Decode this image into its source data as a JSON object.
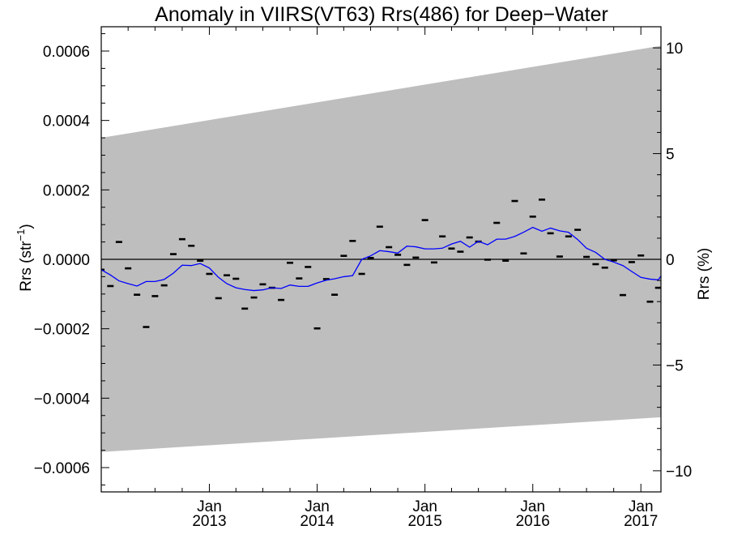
{
  "chart_data": {
    "type": "line",
    "title": "Anomaly in VIIRS(VT63) Rrs(486) for Deep−Water",
    "ylabel_left": {
      "main": "Rrs (str",
      "sup": "−1",
      "close": ")"
    },
    "ylabel_right": "Rrs (%)",
    "ylim_left": [
      -0.00067,
      0.00067
    ],
    "ylim_right": [
      -11.0,
      11.0
    ],
    "y_ticks_left": [
      {
        "value": -0.0006,
        "label": "−0.0006"
      },
      {
        "value": -0.0004,
        "label": "−0.0004"
      },
      {
        "value": -0.0002,
        "label": "−0.0002"
      },
      {
        "value": 0.0,
        "label": "0.0000"
      },
      {
        "value": 0.0002,
        "label": "0.0002"
      },
      {
        "value": 0.0004,
        "label": "0.0004"
      },
      {
        "value": 0.0006,
        "label": "0.0006"
      }
    ],
    "y_ticks_right": [
      {
        "value": -10,
        "label": "−10"
      },
      {
        "value": -5,
        "label": "−5"
      },
      {
        "value": 0,
        "label": "0"
      },
      {
        "value": 5,
        "label": "5"
      },
      {
        "value": 10,
        "label": "10"
      }
    ],
    "x_range": [
      "2012-01-01",
      "2017-03-10"
    ],
    "x_ticks": [
      {
        "date": "2013-01-01",
        "month": "Jan",
        "year": "2013"
      },
      {
        "date": "2014-01-01",
        "month": "Jan",
        "year": "2014"
      },
      {
        "date": "2015-01-01",
        "month": "Jan",
        "year": "2015"
      },
      {
        "date": "2016-01-01",
        "month": "Jan",
        "year": "2016"
      },
      {
        "date": "2017-01-01",
        "month": "Jan",
        "year": "2017"
      }
    ],
    "uncertainty_band": {
      "color": "#bebebe",
      "x": [
        "2012-01-01",
        "2017-03-10"
      ],
      "upper": [
        0.00035,
        0.000615
      ],
      "lower": [
        -0.000555,
        -0.000455
      ]
    },
    "zero_line": 0.0,
    "series": [
      {
        "kind": "monthly_marks",
        "color": "#000000",
        "points": [
          {
            "x": "2012-01-01",
            "y": -3e-05
          },
          {
            "x": "2012-02-01",
            "y": -7.7e-05
          },
          {
            "x": "2012-03-01",
            "y": 5e-05
          },
          {
            "x": "2012-04-01",
            "y": -2.6e-05
          },
          {
            "x": "2012-05-01",
            "y": -0.000102
          },
          {
            "x": "2012-06-01",
            "y": -0.000195
          },
          {
            "x": "2012-07-01",
            "y": -0.000106
          },
          {
            "x": "2012-08-01",
            "y": -7.5e-05
          },
          {
            "x": "2012-09-01",
            "y": 1.5e-05
          },
          {
            "x": "2012-10-01",
            "y": 5.8e-05
          },
          {
            "x": "2012-11-01",
            "y": 3.9e-05
          },
          {
            "x": "2012-12-01",
            "y": -4e-06
          },
          {
            "x": "2013-01-01",
            "y": -4.2e-05
          },
          {
            "x": "2013-02-01",
            "y": -0.000112
          },
          {
            "x": "2013-03-01",
            "y": -4.6e-05
          },
          {
            "x": "2013-04-01",
            "y": -5.6e-05
          },
          {
            "x": "2013-05-01",
            "y": -0.000142
          },
          {
            "x": "2013-06-01",
            "y": -0.00011
          },
          {
            "x": "2013-07-01",
            "y": -7.2e-05
          },
          {
            "x": "2013-08-01",
            "y": -8.2e-05
          },
          {
            "x": "2013-09-01",
            "y": -0.000117
          },
          {
            "x": "2013-10-01",
            "y": -1e-05
          },
          {
            "x": "2013-11-01",
            "y": -5.5e-05
          },
          {
            "x": "2013-12-01",
            "y": -2.2e-05
          },
          {
            "x": "2014-01-01",
            "y": -0.000199
          },
          {
            "x": "2014-02-01",
            "y": -5.7e-05
          },
          {
            "x": "2014-03-01",
            "y": -0.000102
          },
          {
            "x": "2014-04-01",
            "y": 1e-05
          },
          {
            "x": "2014-05-01",
            "y": 5.3e-05
          },
          {
            "x": "2014-06-01",
            "y": -4.2e-05
          },
          {
            "x": "2014-07-01",
            "y": 4e-06
          },
          {
            "x": "2014-08-01",
            "y": 9.4e-05
          },
          {
            "x": "2014-09-01",
            "y": 3.5e-05
          },
          {
            "x": "2014-10-01",
            "y": 1.3e-05
          },
          {
            "x": "2014-11-01",
            "y": -1.6e-05
          },
          {
            "x": "2014-12-01",
            "y": 5e-06
          },
          {
            "x": "2015-01-01",
            "y": 0.000113
          },
          {
            "x": "2015-02-01",
            "y": -9e-06
          },
          {
            "x": "2015-03-01",
            "y": 6.6e-05
          },
          {
            "x": "2015-04-01",
            "y": 3.1e-05
          },
          {
            "x": "2015-05-01",
            "y": 2.2e-05
          },
          {
            "x": "2015-06-01",
            "y": 6.3e-05
          },
          {
            "x": "2015-07-01",
            "y": 5.1e-05
          },
          {
            "x": "2015-08-01",
            "y": -1e-06
          },
          {
            "x": "2015-09-01",
            "y": 0.000105
          },
          {
            "x": "2015-10-01",
            "y": -4e-06
          },
          {
            "x": "2015-11-01",
            "y": 0.000168
          },
          {
            "x": "2015-12-01",
            "y": 1.7e-05
          },
          {
            "x": "2016-01-01",
            "y": 0.000123
          },
          {
            "x": "2016-02-01",
            "y": 0.000172
          },
          {
            "x": "2016-03-01",
            "y": 7.5e-05
          },
          {
            "x": "2016-04-01",
            "y": 8e-06
          },
          {
            "x": "2016-05-01",
            "y": 6.6e-05
          },
          {
            "x": "2016-06-01",
            "y": 8.5e-05
          },
          {
            "x": "2016-07-01",
            "y": 7e-06
          },
          {
            "x": "2016-08-01",
            "y": -1.4e-05
          },
          {
            "x": "2016-09-01",
            "y": -2.4e-05
          },
          {
            "x": "2016-10-01",
            "y": -3e-06
          },
          {
            "x": "2016-11-01",
            "y": -0.000103
          },
          {
            "x": "2016-12-01",
            "y": -8e-06
          },
          {
            "x": "2017-01-01",
            "y": 1.1e-05
          },
          {
            "x": "2017-02-01",
            "y": -0.000122
          },
          {
            "x": "2017-03-01",
            "y": -8.2e-05
          }
        ]
      },
      {
        "kind": "running_mean",
        "color": "#0000ff",
        "points": [
          {
            "x": "2012-01-01",
            "y": -3e-05
          },
          {
            "x": "2012-02-01",
            "y": -4.5e-05
          },
          {
            "x": "2012-03-01",
            "y": -6.2e-05
          },
          {
            "x": "2012-04-01",
            "y": -7e-05
          },
          {
            "x": "2012-05-01",
            "y": -7.7e-05
          },
          {
            "x": "2012-06-01",
            "y": -6.4e-05
          },
          {
            "x": "2012-07-01",
            "y": -6.4e-05
          },
          {
            "x": "2012-08-01",
            "y": -5.8e-05
          },
          {
            "x": "2012-09-01",
            "y": -4e-05
          },
          {
            "x": "2012-10-01",
            "y": -1.7e-05
          },
          {
            "x": "2012-11-01",
            "y": -1.8e-05
          },
          {
            "x": "2012-12-01",
            "y": -1.2e-05
          },
          {
            "x": "2013-01-01",
            "y": -2.5e-05
          },
          {
            "x": "2013-02-01",
            "y": -5.2e-05
          },
          {
            "x": "2013-03-01",
            "y": -7e-05
          },
          {
            "x": "2013-04-01",
            "y": -8.2e-05
          },
          {
            "x": "2013-05-01",
            "y": -8.7e-05
          },
          {
            "x": "2013-06-01",
            "y": -9e-05
          },
          {
            "x": "2013-07-01",
            "y": -8.8e-05
          },
          {
            "x": "2013-08-01",
            "y": -8.2e-05
          },
          {
            "x": "2013-09-01",
            "y": -8.4e-05
          },
          {
            "x": "2013-10-01",
            "y": -7.4e-05
          },
          {
            "x": "2013-11-01",
            "y": -7.8e-05
          },
          {
            "x": "2013-12-01",
            "y": -7.8e-05
          },
          {
            "x": "2014-01-01",
            "y": -6.8e-05
          },
          {
            "x": "2014-02-01",
            "y": -6e-05
          },
          {
            "x": "2014-03-01",
            "y": -5.6e-05
          },
          {
            "x": "2014-04-01",
            "y": -5e-05
          },
          {
            "x": "2014-05-01",
            "y": -4.7e-05
          },
          {
            "x": "2014-06-01",
            "y": 0.0
          },
          {
            "x": "2014-07-01",
            "y": 1e-05
          },
          {
            "x": "2014-08-01",
            "y": 2.5e-05
          },
          {
            "x": "2014-09-01",
            "y": 2.2e-05
          },
          {
            "x": "2014-10-01",
            "y": 1.8e-05
          },
          {
            "x": "2014-11-01",
            "y": 3.8e-05
          },
          {
            "x": "2014-12-01",
            "y": 3.6e-05
          },
          {
            "x": "2015-01-01",
            "y": 3e-05
          },
          {
            "x": "2015-02-01",
            "y": 3e-05
          },
          {
            "x": "2015-03-01",
            "y": 3.2e-05
          },
          {
            "x": "2015-04-01",
            "y": 4.4e-05
          },
          {
            "x": "2015-05-01",
            "y": 5.2e-05
          },
          {
            "x": "2015-06-01",
            "y": 3.5e-05
          },
          {
            "x": "2015-07-01",
            "y": 5.2e-05
          },
          {
            "x": "2015-08-01",
            "y": 4.2e-05
          },
          {
            "x": "2015-09-01",
            "y": 5.8e-05
          },
          {
            "x": "2015-10-01",
            "y": 5.8e-05
          },
          {
            "x": "2015-11-01",
            "y": 6.6e-05
          },
          {
            "x": "2015-12-01",
            "y": 7.8e-05
          },
          {
            "x": "2016-01-01",
            "y": 9.2e-05
          },
          {
            "x": "2016-02-01",
            "y": 8.1e-05
          },
          {
            "x": "2016-03-01",
            "y": 9e-05
          },
          {
            "x": "2016-04-01",
            "y": 8.2e-05
          },
          {
            "x": "2016-05-01",
            "y": 7.8e-05
          },
          {
            "x": "2016-06-01",
            "y": 5.7e-05
          },
          {
            "x": "2016-07-01",
            "y": 3.2e-05
          },
          {
            "x": "2016-08-01",
            "y": 2e-05
          },
          {
            "x": "2016-09-01",
            "y": 0.0
          },
          {
            "x": "2016-10-01",
            "y": -8e-06
          },
          {
            "x": "2016-11-01",
            "y": -1.8e-05
          },
          {
            "x": "2016-12-01",
            "y": -3.5e-05
          },
          {
            "x": "2017-01-01",
            "y": -5.2e-05
          },
          {
            "x": "2017-02-01",
            "y": -5.7e-05
          },
          {
            "x": "2017-03-01",
            "y": -5.9e-05
          },
          {
            "x": "2017-03-10",
            "y": -4.8e-05
          }
        ]
      }
    ]
  }
}
